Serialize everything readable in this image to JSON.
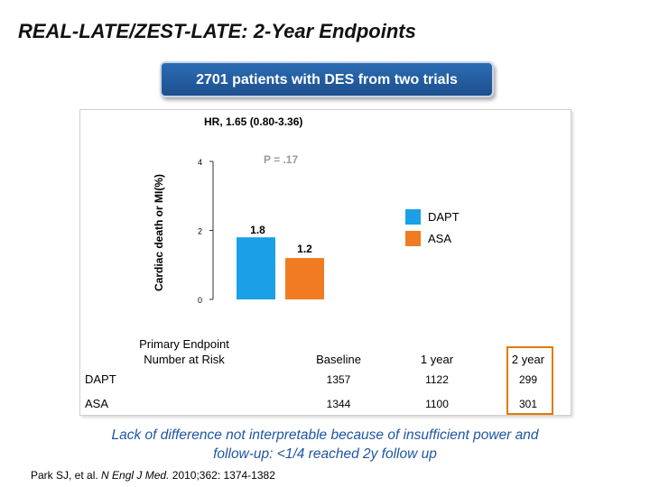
{
  "title": "REAL-LATE/ZEST-LATE: 2-Year Endpoints",
  "banner": "2701 patients with DES from two trials",
  "chart_data": {
    "type": "bar",
    "categories": [
      "Primary Endpoint"
    ],
    "series": [
      {
        "name": "DAPT",
        "values": [
          1.8
        ],
        "color": "#1aa0e6"
      },
      {
        "name": "ASA",
        "values": [
          1.2
        ],
        "color": "#f07b23"
      }
    ],
    "data_labels": [
      "1.8",
      "1.2"
    ],
    "ylabel": "Cardiac death or MI(%)",
    "yticks": [
      0,
      2,
      4
    ],
    "ylim": [
      0,
      4
    ],
    "annotations": {
      "hr": "HR, 1.65 (0.80-3.36)",
      "p_value": "P = .17"
    },
    "legend_position": "right"
  },
  "risk_table": {
    "header_label_line1": "Primary Endpoint",
    "header_label_line2": "Number at Risk",
    "columns": [
      "Baseline",
      "1 year",
      "2 year"
    ],
    "rows": [
      {
        "label": "DAPT",
        "values": [
          "1357",
          "1122",
          "299"
        ]
      },
      {
        "label": "ASA",
        "values": [
          "1344",
          "1100",
          "301"
        ]
      }
    ]
  },
  "note": "Lack of difference not interpretable because of insufficient power and follow-up: <1/4 reached 2y follow up",
  "citation": {
    "prefix": "Park SJ, et al.",
    "journal": "N Engl J Med.",
    "rest": "2010;362: 1374-1382"
  }
}
